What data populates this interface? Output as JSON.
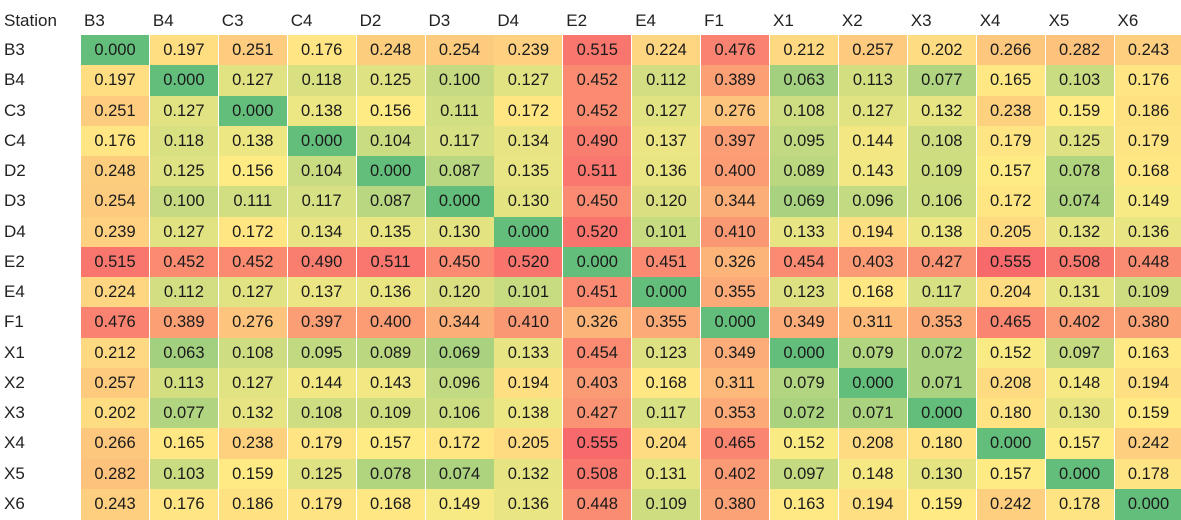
{
  "chart_data": {
    "type": "heatmap",
    "corner_label": "Station",
    "columns": [
      "B3",
      "B4",
      "C3",
      "C4",
      "D2",
      "D3",
      "D4",
      "E2",
      "E4",
      "F1",
      "X1",
      "X2",
      "X3",
      "X4",
      "X5",
      "X6"
    ],
    "rows": [
      "B3",
      "B4",
      "C3",
      "C4",
      "D2",
      "D3",
      "D4",
      "E2",
      "E4",
      "F1",
      "X1",
      "X2",
      "X3",
      "X4",
      "X5",
      "X6"
    ],
    "color_scale": {
      "low": "#63be7b",
      "mid": "#ffeb84",
      "high": "#f8696b"
    },
    "values": [
      [
        "0.000",
        "0.197",
        "0.251",
        "0.176",
        "0.248",
        "0.254",
        "0.239",
        "0.515",
        "0.224",
        "0.476",
        "0.212",
        "0.257",
        "0.202",
        "0.266",
        "0.282",
        "0.243"
      ],
      [
        "0.197",
        "0.000",
        "0.127",
        "0.118",
        "0.125",
        "0.100",
        "0.127",
        "0.452",
        "0.112",
        "0.389",
        "0.063",
        "0.113",
        "0.077",
        "0.165",
        "0.103",
        "0.176"
      ],
      [
        "0.251",
        "0.127",
        "0.000",
        "0.138",
        "0.156",
        "0.111",
        "0.172",
        "0.452",
        "0.127",
        "0.276",
        "0.108",
        "0.127",
        "0.132",
        "0.238",
        "0.159",
        "0.186"
      ],
      [
        "0.176",
        "0.118",
        "0.138",
        "0.000",
        "0.104",
        "0.117",
        "0.134",
        "0.490",
        "0.137",
        "0.397",
        "0.095",
        "0.144",
        "0.108",
        "0.179",
        "0.125",
        "0.179"
      ],
      [
        "0.248",
        "0.125",
        "0.156",
        "0.104",
        "0.000",
        "0.087",
        "0.135",
        "0.511",
        "0.136",
        "0.400",
        "0.089",
        "0.143",
        "0.109",
        "0.157",
        "0.078",
        "0.168"
      ],
      [
        "0.254",
        "0.100",
        "0.111",
        "0.117",
        "0.087",
        "0.000",
        "0.130",
        "0.450",
        "0.120",
        "0.344",
        "0.069",
        "0.096",
        "0.106",
        "0.172",
        "0.074",
        "0.149"
      ],
      [
        "0.239",
        "0.127",
        "0.172",
        "0.134",
        "0.135",
        "0.130",
        "0.000",
        "0.520",
        "0.101",
        "0.410",
        "0.133",
        "0.194",
        "0.138",
        "0.205",
        "0.132",
        "0.136"
      ],
      [
        "0.515",
        "0.452",
        "0.452",
        "0.490",
        "0.511",
        "0.450",
        "0.520",
        "0.000",
        "0.451",
        "0.326",
        "0.454",
        "0.403",
        "0.427",
        "0.555",
        "0.508",
        "0.448"
      ],
      [
        "0.224",
        "0.112",
        "0.127",
        "0.137",
        "0.136",
        "0.120",
        "0.101",
        "0.451",
        "0.000",
        "0.355",
        "0.123",
        "0.168",
        "0.117",
        "0.204",
        "0.131",
        "0.109"
      ],
      [
        "0.476",
        "0.389",
        "0.276",
        "0.397",
        "0.400",
        "0.344",
        "0.410",
        "0.326",
        "0.355",
        "0.000",
        "0.349",
        "0.311",
        "0.353",
        "0.465",
        "0.402",
        "0.380"
      ],
      [
        "0.212",
        "0.063",
        "0.108",
        "0.095",
        "0.089",
        "0.069",
        "0.133",
        "0.454",
        "0.123",
        "0.349",
        "0.000",
        "0.079",
        "0.072",
        "0.152",
        "0.097",
        "0.163"
      ],
      [
        "0.257",
        "0.113",
        "0.127",
        "0.144",
        "0.143",
        "0.096",
        "0.194",
        "0.403",
        "0.168",
        "0.311",
        "0.079",
        "0.000",
        "0.071",
        "0.208",
        "0.148",
        "0.194"
      ],
      [
        "0.202",
        "0.077",
        "0.132",
        "0.108",
        "0.109",
        "0.106",
        "0.138",
        "0.427",
        "0.117",
        "0.353",
        "0.072",
        "0.071",
        "0.000",
        "0.180",
        "0.130",
        "0.159"
      ],
      [
        "0.266",
        "0.165",
        "0.238",
        "0.179",
        "0.157",
        "0.172",
        "0.205",
        "0.555",
        "0.204",
        "0.465",
        "0.152",
        "0.208",
        "0.180",
        "0.000",
        "0.157",
        "0.242"
      ],
      [
        "0.282",
        "0.103",
        "0.159",
        "0.125",
        "0.078",
        "0.074",
        "0.132",
        "0.508",
        "0.131",
        "0.402",
        "0.097",
        "0.148",
        "0.130",
        "0.157",
        "0.000",
        "0.178"
      ],
      [
        "0.243",
        "0.176",
        "0.186",
        "0.179",
        "0.168",
        "0.149",
        "0.136",
        "0.448",
        "0.109",
        "0.380",
        "0.163",
        "0.194",
        "0.159",
        "0.242",
        "0.178",
        "0.000"
      ]
    ]
  }
}
